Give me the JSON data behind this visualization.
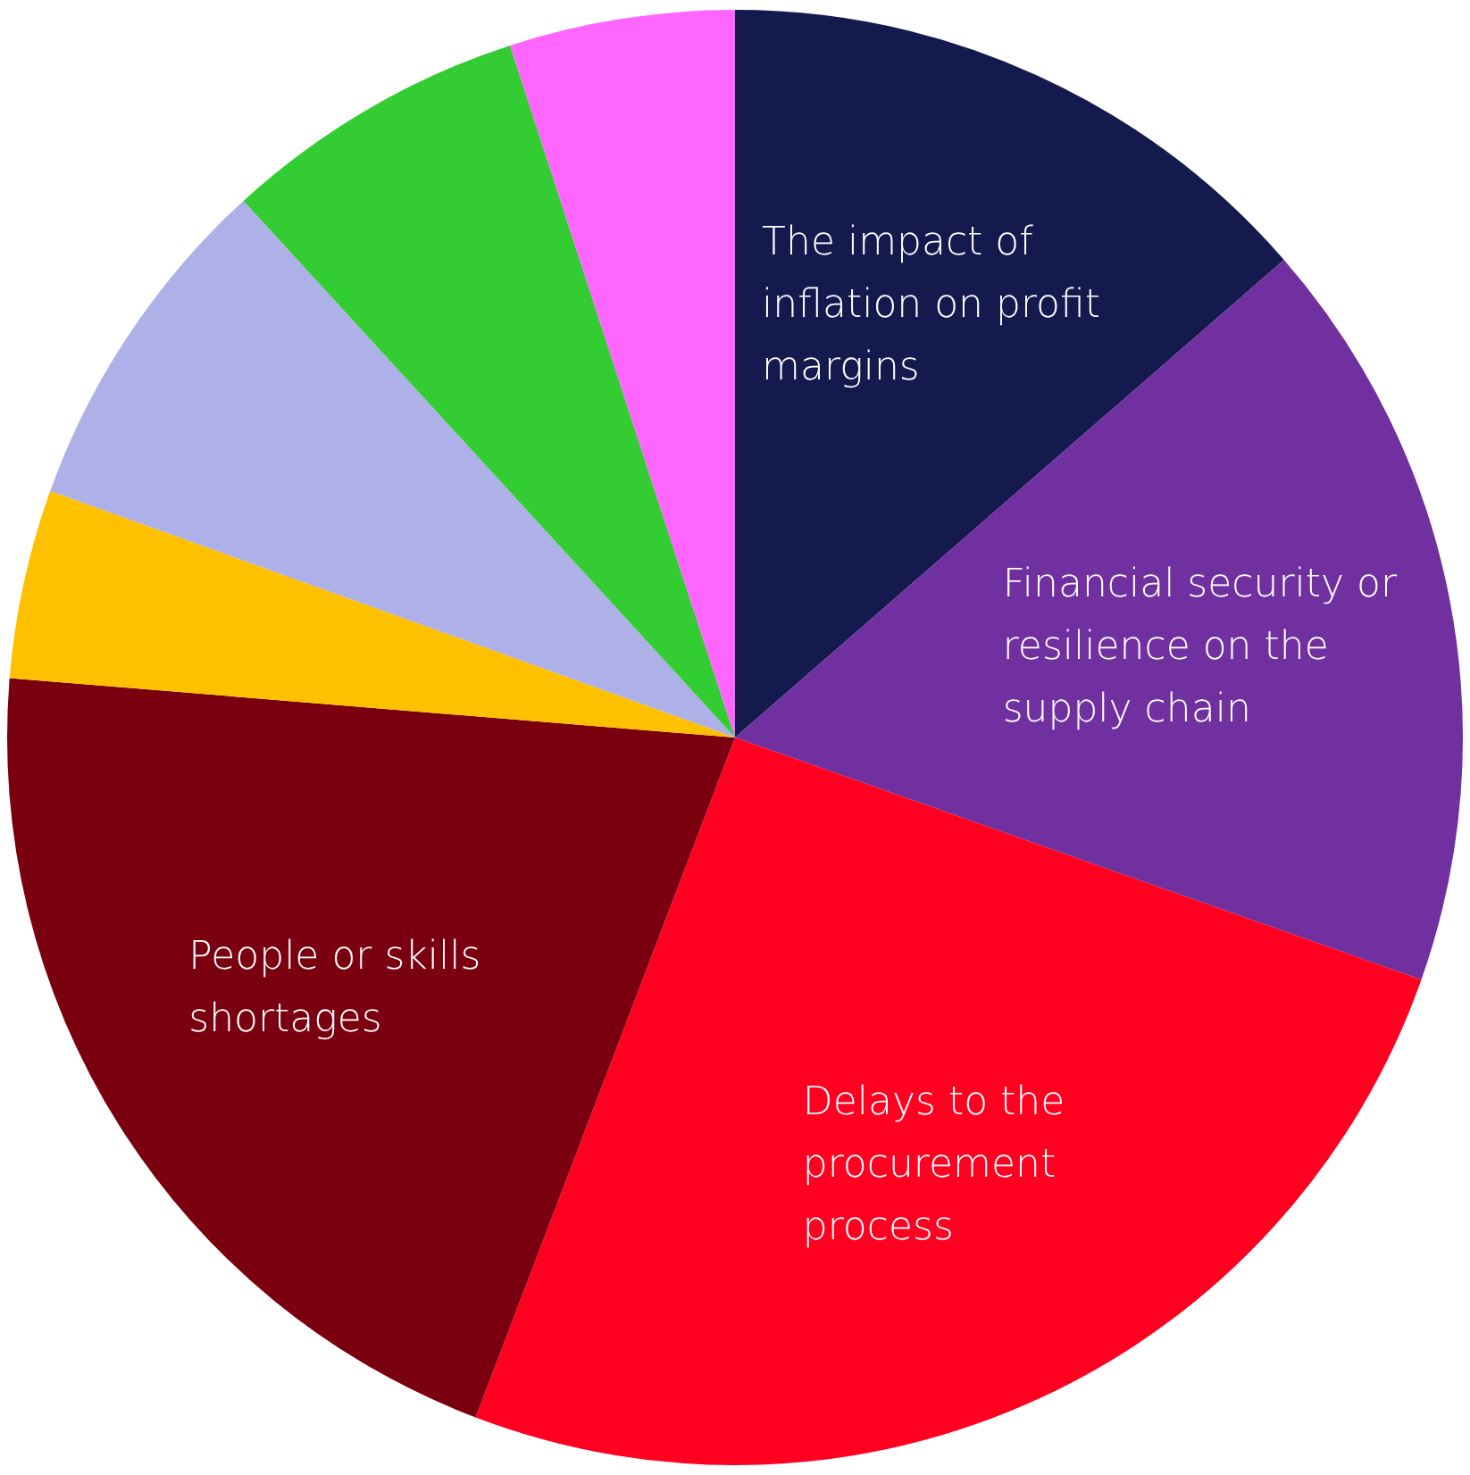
{
  "chart_data": {
    "type": "pie",
    "categories": [
      "The impact of inflation on profit margins",
      "Financial security or resilience on the supply chain",
      "Delays to the procurement process",
      "People or skills shortages",
      null,
      null,
      null,
      null
    ],
    "values": [
      13.6,
      16.8,
      25.4,
      20.5,
      4.2,
      7.7,
      6.8,
      5.0
    ],
    "colors": [
      "#141a4e",
      "#7030a0",
      "#ff0020",
      "#7a0010",
      "#ffc000",
      "#aeb0e8",
      "#33cc33",
      "#ff66ff"
    ],
    "legend": false
  }
}
